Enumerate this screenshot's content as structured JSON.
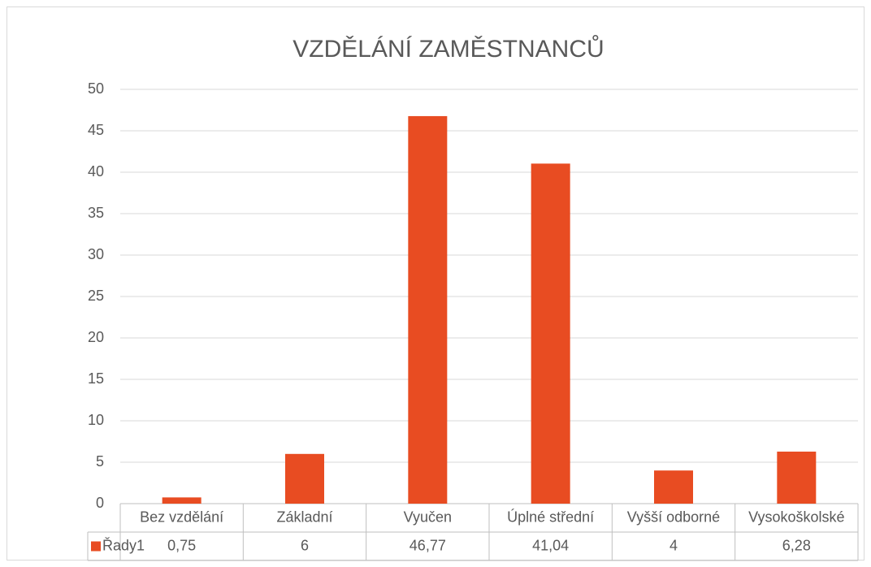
{
  "chart_data": {
    "type": "bar",
    "title": "VZDĚLÁNÍ ZAMĚSTNANCŮ",
    "categories": [
      "Bez vzdělání",
      "Základní",
      "Vyučen",
      "Úplné střední",
      "Vyšší odborné",
      "Vysokoškolské"
    ],
    "series": [
      {
        "name": "Řady1",
        "color": "#e84c22",
        "values": [
          0.75,
          6,
          46.77,
          41.04,
          4,
          6.28
        ],
        "value_labels": [
          "0,75",
          "6",
          "46,77",
          "41,04",
          "4",
          "6,28"
        ]
      }
    ],
    "ylim": [
      0,
      50
    ],
    "yticks": [
      0,
      5,
      10,
      15,
      20,
      25,
      30,
      35,
      40,
      45,
      50
    ],
    "grid": true
  }
}
